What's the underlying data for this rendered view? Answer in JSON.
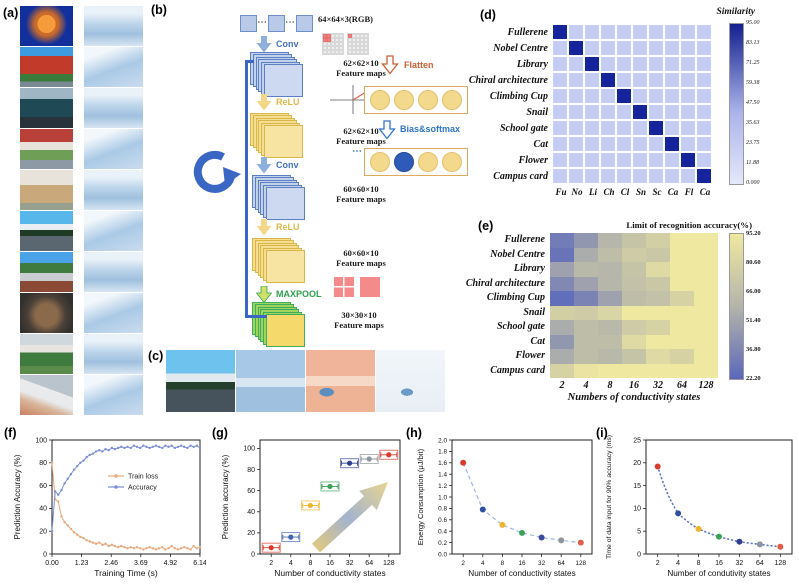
{
  "panels": {
    "a": {
      "label": "(a)",
      "items": [
        "fullerene",
        "nobel-centre",
        "library",
        "chiral-architecture",
        "climbing-cup",
        "snail",
        "school-gate",
        "cat",
        "flower",
        "campus-card"
      ]
    },
    "b": {
      "label": "(b)",
      "input_label": "64×64×3(RGB)",
      "dots": "⋯",
      "steps": [
        {
          "op": "Conv",
          "out": "62×62×10",
          "out2": "Feature maps"
        },
        {
          "op": "ReLU",
          "out": "62×62×10",
          "out2": "Feature maps"
        },
        {
          "op": "Conv",
          "out": "60×60×10",
          "out2": "Feature maps"
        },
        {
          "op": "ReLU",
          "out": "60×60×10",
          "out2": "Feature maps"
        },
        {
          "op": "MAXPOOL",
          "out": "30×30×10",
          "out2": "Feature maps"
        }
      ],
      "flatten_label": "Flatten",
      "bias_label": "Bias&softmax"
    },
    "c": {
      "label": "(c)",
      "items": [
        "snail-photo",
        "snail-feature-blue",
        "snail-feature-orange",
        "snail-feature-pale"
      ]
    },
    "d": {
      "label": "(d)"
    },
    "e": {
      "label": "(e)"
    },
    "f": {
      "label": "(f)"
    },
    "g": {
      "label": "(g)"
    },
    "h": {
      "label": "(h)"
    },
    "i": {
      "label": "(i)"
    }
  },
  "accent": {
    "conv_blue": "#4472c4",
    "relu_yellow": "#e0b84a",
    "maxpool_green": "#2fa04e",
    "flatten_orange": "#cc5f33",
    "bias_blue": "#2e75c8",
    "arrow_blue_fill": "#8fb0dc",
    "arrow_yellow_fill": "#f3d88a",
    "arrow_green_fill": "#cfe06a",
    "loop_blue": "#3b67c4"
  },
  "chart_data": [
    {
      "id": "d",
      "type": "heatmap",
      "rows": [
        "Fullerene",
        "Nobel Centre",
        "Library",
        "Chiral architecture",
        "Climbing Cup",
        "Snail",
        "School gate",
        "Cat",
        "Flower",
        "Campus card"
      ],
      "cols": [
        "Fu",
        "No",
        "Li",
        "Ch",
        "Cl",
        "Sn",
        "Sc",
        "Ca",
        "Fl",
        "Ca"
      ],
      "diagonal_value": 95,
      "off_diagonal_value": 5,
      "diag_color": "#16249c",
      "cell_color": "#c6cdf2",
      "colorbar": {
        "title": "Similarity",
        "ticks": [
          "95.00",
          "83.13",
          "71.25",
          "59.38",
          "47.50",
          "35.63",
          "23.75",
          "11.88",
          "0.000"
        ],
        "top_color": "#141f8e",
        "mid_color": "#aab4ea",
        "bottom_color": "#e4e8fa"
      }
    },
    {
      "id": "e",
      "type": "heatmap",
      "rows": [
        "Fullerene",
        "Nobel Centre",
        "Library",
        "Chiral architecture",
        "Climbing Cup",
        "Snail",
        "School gate",
        "Cat",
        "Flower",
        "Campus card"
      ],
      "cols": [
        "2",
        "4",
        "8",
        "16",
        "32",
        "64",
        "128"
      ],
      "xlabel": "Numbers of conductivity states",
      "values": [
        [
          32,
          45,
          60,
          70,
          78,
          95,
          95
        ],
        [
          28,
          55,
          65,
          75,
          72,
          95,
          95
        ],
        [
          50,
          62,
          60,
          70,
          85,
          95,
          95
        ],
        [
          38,
          50,
          60,
          68,
          72,
          95,
          95
        ],
        [
          25,
          35,
          50,
          65,
          68,
          80,
          95
        ],
        [
          78,
          75,
          82,
          95,
          95,
          95,
          95
        ],
        [
          55,
          65,
          62,
          75,
          80,
          95,
          95
        ],
        [
          45,
          65,
          65,
          85,
          95,
          95,
          95
        ],
        [
          55,
          65,
          62,
          70,
          85,
          80,
          95
        ],
        [
          80,
          92,
          95,
          95,
          95,
          95,
          95
        ]
      ],
      "colormap": {
        "vmin": 22.2,
        "vmax": 95.2,
        "low": "#5a68ba",
        "mid": "#b4b4aa",
        "high": "#efe8a0"
      },
      "colorbar": {
        "title": "Limit of recognition accuracy(%)",
        "ticks": [
          "95.20",
          "80.60",
          "66.00",
          "51.40",
          "36.80",
          "22.20"
        ]
      }
    },
    {
      "id": "f",
      "type": "line",
      "xlabel": "Training Time (s)",
      "ylabel": "Prediction Accuracy (%)",
      "xlim": [
        0,
        6.14
      ],
      "ylim": [
        0,
        100
      ],
      "xticks": [
        "0.00",
        "1.23",
        "2.46",
        "3.69",
        "4.92",
        "6.14"
      ],
      "yticks": [
        0,
        20,
        40,
        60,
        80,
        100
      ],
      "series": [
        {
          "name": "Train loss",
          "color": "#e8a87c",
          "values": [
            80,
            48,
            46,
            33,
            28,
            25,
            22,
            19,
            17,
            15,
            14,
            12,
            11,
            10,
            9,
            10,
            8,
            9,
            7,
            8,
            7,
            6,
            7,
            6,
            5,
            6,
            5,
            6,
            5,
            4,
            5,
            6,
            5,
            4,
            5,
            6,
            4,
            5,
            7,
            5,
            4,
            5,
            6,
            5,
            4,
            7,
            5,
            6
          ]
        },
        {
          "name": "Accuracy",
          "color": "#7b8fd4",
          "values": [
            20,
            55,
            52,
            56,
            62,
            66,
            70,
            74,
            77,
            80,
            82,
            85,
            87,
            88,
            90,
            91,
            90,
            92,
            91,
            93,
            92,
            93,
            94,
            93,
            94,
            93,
            95,
            94,
            93,
            95,
            94,
            93,
            94,
            95,
            94,
            93,
            95,
            94,
            95,
            93,
            94,
            95,
            94,
            93,
            95,
            94,
            95,
            93
          ]
        }
      ],
      "legend_position": "center-right"
    },
    {
      "id": "g",
      "type": "scatter",
      "xlabel": "Number of conductivity states",
      "ylabel": "Prediction accuracy (%)",
      "categories": [
        "2",
        "4",
        "8",
        "16",
        "32",
        "64",
        "128"
      ],
      "values": [
        6,
        16,
        46,
        64,
        86,
        90,
        94
      ],
      "yticks": [
        0,
        20,
        40,
        60,
        80,
        100
      ],
      "ylim": [
        0,
        108
      ],
      "colors": [
        "#d93a2b",
        "#3f63ae",
        "#f0b428",
        "#3aa358",
        "#2f3f8f",
        "#8f949c",
        "#d93a2b"
      ],
      "annotation": "up-right-gradient-arrow"
    },
    {
      "id": "h",
      "type": "scatter",
      "xlabel": "Number of conductivity states",
      "ylabel": "Energy Consumption (μJ/bit)",
      "categories": [
        "2",
        "4",
        "8",
        "16",
        "32",
        "64",
        "128"
      ],
      "values": [
        1.6,
        0.78,
        0.51,
        0.37,
        0.29,
        0.24,
        0.2
      ],
      "yticks": [
        0.0,
        0.2,
        0.4,
        0.6,
        0.8,
        1.0,
        1.2,
        1.4,
        1.6,
        1.8,
        2.0
      ],
      "ylim": [
        0,
        2.0
      ],
      "colors": [
        "#d93a2b",
        "#2f4f9f",
        "#f0b428",
        "#3aa358",
        "#3a4a9f",
        "#8f949c",
        "#e06050"
      ],
      "line_style": "dashed",
      "line_color": "#9fb4e8"
    },
    {
      "id": "i",
      "type": "scatter",
      "xlabel": "Number of condutivity states",
      "ylabel": "Time of data input for 90% accuracy (ms)",
      "categories": [
        "2",
        "4",
        "8",
        "16",
        "32",
        "64",
        "128"
      ],
      "values": [
        19.2,
        8.9,
        5.5,
        3.8,
        2.7,
        2.1,
        1.6
      ],
      "yticks": [
        0,
        5,
        10,
        15,
        20,
        25
      ],
      "ylim": [
        0,
        25
      ],
      "colors": [
        "#d93a2b",
        "#2f4f9f",
        "#f0b428",
        "#3aa358",
        "#2f3f8f",
        "#8f949c",
        "#e05a4a"
      ],
      "line_style": "dotted",
      "line_color": "#5a74c8"
    }
  ]
}
